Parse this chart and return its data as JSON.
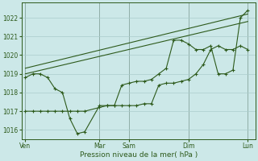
{
  "background_color": "#cce8e8",
  "grid_color": "#aacccc",
  "line_color": "#2d5a1b",
  "xlabel": "Pression niveau de la mer( hPa )",
  "ylim": [
    1015.5,
    1022.8
  ],
  "yticks": [
    1016,
    1017,
    1018,
    1019,
    1020,
    1021,
    1022
  ],
  "xtick_labels": [
    "Ven",
    "Mar",
    "Sam",
    "Dim",
    "Lun"
  ],
  "xtick_positions": [
    0,
    10,
    14,
    22,
    30
  ],
  "xlim": [
    -0.5,
    31
  ],
  "series1_x": [
    0,
    1,
    2,
    3,
    4,
    5,
    6,
    7,
    8,
    10,
    11,
    12,
    13,
    14,
    15,
    16,
    17,
    18,
    19,
    20,
    21,
    22,
    23,
    24,
    25,
    26,
    27,
    28,
    29,
    30
  ],
  "series1_y": [
    1018.8,
    1019.0,
    1019.0,
    1018.8,
    1018.2,
    1018.0,
    1016.6,
    1015.8,
    1015.9,
    1017.3,
    1017.3,
    1017.3,
    1018.4,
    1018.5,
    1018.6,
    1018.6,
    1018.7,
    1019.0,
    1019.3,
    1020.8,
    1020.8,
    1020.6,
    1020.3,
    1020.3,
    1020.5,
    1019.0,
    1019.0,
    1019.2,
    1022.0,
    1022.4
  ],
  "series2_x": [
    0,
    1,
    2,
    3,
    4,
    5,
    6,
    7,
    8,
    10,
    11,
    12,
    13,
    14,
    15,
    16,
    17,
    18,
    19,
    20,
    21,
    22,
    23,
    24,
    25,
    26,
    27,
    28,
    29,
    30
  ],
  "series2_y": [
    1017.0,
    1017.0,
    1017.0,
    1017.0,
    1017.0,
    1017.0,
    1017.0,
    1017.0,
    1017.0,
    1017.2,
    1017.3,
    1017.3,
    1017.3,
    1017.3,
    1017.3,
    1017.4,
    1017.4,
    1018.4,
    1018.5,
    1018.5,
    1018.6,
    1018.7,
    1019.0,
    1019.5,
    1020.3,
    1020.5,
    1020.3,
    1020.3,
    1020.5,
    1020.3
  ],
  "trend1_x": [
    0,
    30
  ],
  "trend1_y": [
    1019.0,
    1021.8
  ],
  "trend2_x": [
    0,
    30
  ],
  "trend2_y": [
    1019.3,
    1022.2
  ]
}
